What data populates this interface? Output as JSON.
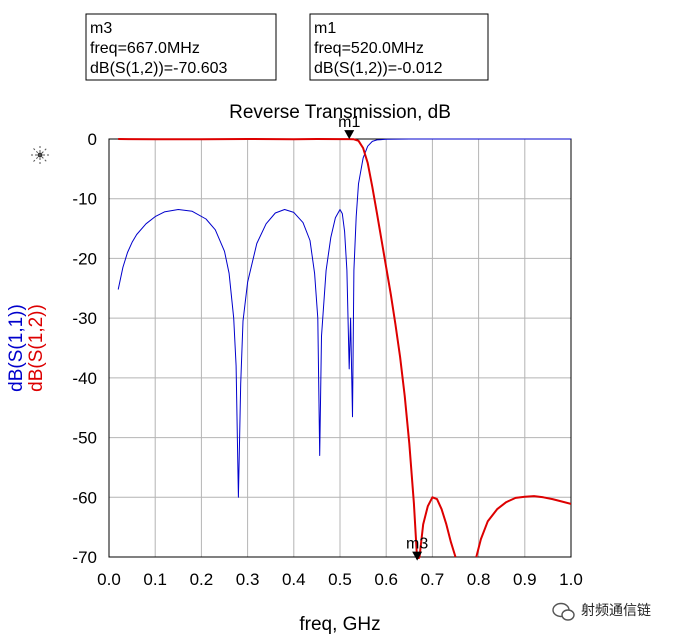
{
  "chart_data": {
    "type": "line",
    "title": "Reverse Transmission, dB",
    "xlabel": "freq, GHz",
    "ylabels": [
      "dB(S(1,1))",
      "dB(S(1,2))"
    ],
    "xlim": [
      0,
      1.0
    ],
    "ylim": [
      -70,
      0
    ],
    "xticks": [
      "0.0",
      "0.1",
      "0.2",
      "0.3",
      "0.4",
      "0.5",
      "0.6",
      "0.7",
      "0.8",
      "0.9",
      "1.0"
    ],
    "yticks": [
      "0",
      "-10",
      "-20",
      "-30",
      "-40",
      "-50",
      "-60",
      "-70"
    ],
    "grid": true,
    "series": [
      {
        "name": "dB(S(1,1))",
        "color": "#0000cc",
        "points": [
          [
            0.02,
            -25.2
          ],
          [
            0.03,
            -21.5
          ],
          [
            0.04,
            -19.0
          ],
          [
            0.05,
            -17.3
          ],
          [
            0.06,
            -16.0
          ],
          [
            0.08,
            -14.2
          ],
          [
            0.1,
            -13.0
          ],
          [
            0.12,
            -12.2
          ],
          [
            0.15,
            -11.8
          ],
          [
            0.18,
            -12.1
          ],
          [
            0.21,
            -13.4
          ],
          [
            0.23,
            -15.2
          ],
          [
            0.25,
            -18.8
          ],
          [
            0.26,
            -22.5
          ],
          [
            0.27,
            -30.0
          ],
          [
            0.275,
            -38.0
          ],
          [
            0.28,
            -60.0
          ],
          [
            0.285,
            -41.0
          ],
          [
            0.29,
            -30.5
          ],
          [
            0.3,
            -24.0
          ],
          [
            0.32,
            -17.5
          ],
          [
            0.34,
            -14.2
          ],
          [
            0.36,
            -12.4
          ],
          [
            0.38,
            -11.8
          ],
          [
            0.4,
            -12.3
          ],
          [
            0.42,
            -14.0
          ],
          [
            0.435,
            -17.0
          ],
          [
            0.445,
            -22.5
          ],
          [
            0.452,
            -30.0
          ],
          [
            0.456,
            -53.0
          ],
          [
            0.46,
            -33.0
          ],
          [
            0.47,
            -22.0
          ],
          [
            0.48,
            -16.5
          ],
          [
            0.49,
            -13.2
          ],
          [
            0.5,
            -11.8
          ],
          [
            0.505,
            -12.5
          ],
          [
            0.51,
            -15.5
          ],
          [
            0.515,
            -22.0
          ],
          [
            0.52,
            -38.5
          ],
          [
            0.523,
            -30.0
          ],
          [
            0.527,
            -46.5
          ],
          [
            0.53,
            -22.0
          ],
          [
            0.535,
            -13.0
          ],
          [
            0.54,
            -7.5
          ],
          [
            0.55,
            -3.2
          ],
          [
            0.56,
            -1.2
          ],
          [
            0.57,
            -0.4
          ],
          [
            0.58,
            -0.15
          ],
          [
            0.6,
            -0.05
          ],
          [
            0.65,
            0.0
          ],
          [
            1.0,
            0.0
          ]
        ]
      },
      {
        "name": "dB(S(1,2))",
        "color": "#dd0000",
        "points": [
          [
            0.02,
            0.0
          ],
          [
            0.1,
            -0.05
          ],
          [
            0.2,
            -0.05
          ],
          [
            0.3,
            0.0
          ],
          [
            0.4,
            -0.05
          ],
          [
            0.45,
            0.0
          ],
          [
            0.5,
            -0.01
          ],
          [
            0.52,
            -0.012
          ],
          [
            0.53,
            -0.05
          ],
          [
            0.54,
            -0.3
          ],
          [
            0.55,
            -1.5
          ],
          [
            0.56,
            -4.0
          ],
          [
            0.57,
            -8.0
          ],
          [
            0.58,
            -12.5
          ],
          [
            0.59,
            -17.0
          ],
          [
            0.6,
            -21.5
          ],
          [
            0.61,
            -26.0
          ],
          [
            0.62,
            -31.0
          ],
          [
            0.63,
            -36.5
          ],
          [
            0.64,
            -43.0
          ],
          [
            0.65,
            -51.0
          ],
          [
            0.66,
            -61.0
          ],
          [
            0.667,
            -70.603
          ],
          [
            0.672,
            -70.0
          ],
          [
            0.68,
            -64.5
          ],
          [
            0.69,
            -61.5
          ],
          [
            0.7,
            -60.0
          ],
          [
            0.71,
            -60.3
          ],
          [
            0.72,
            -62.0
          ],
          [
            0.73,
            -64.5
          ],
          [
            0.74,
            -67.5
          ],
          [
            0.75,
            -70.0
          ],
          null,
          [
            0.795,
            -70.0
          ],
          [
            0.805,
            -67.0
          ],
          [
            0.82,
            -64.0
          ],
          [
            0.84,
            -62.0
          ],
          [
            0.86,
            -60.8
          ],
          [
            0.88,
            -60.1
          ],
          [
            0.9,
            -59.9
          ],
          [
            0.92,
            -59.8
          ],
          [
            0.94,
            -60.0
          ],
          [
            0.96,
            -60.3
          ],
          [
            0.98,
            -60.7
          ],
          [
            1.0,
            -61.1
          ]
        ]
      }
    ],
    "markers": [
      {
        "id": "m1",
        "label": "m1",
        "freq": 0.52,
        "value": -0.012
      },
      {
        "id": "m3",
        "label": "m3",
        "freq": 0.667,
        "value": -70.603
      }
    ]
  },
  "marker_boxes": [
    {
      "name": "m3",
      "line1": "m3",
      "line2": "freq=667.0MHz",
      "line3": "dB(S(1,2))=-70.603"
    },
    {
      "name": "m1",
      "line1": "m1",
      "line2": "freq=520.0MHz",
      "line3": "dB(S(1,2))=-0.012"
    }
  ],
  "watermark": {
    "text": "射频通信链",
    "icon": "wechat-icon"
  },
  "logo_icon": "agilent-spark-icon"
}
